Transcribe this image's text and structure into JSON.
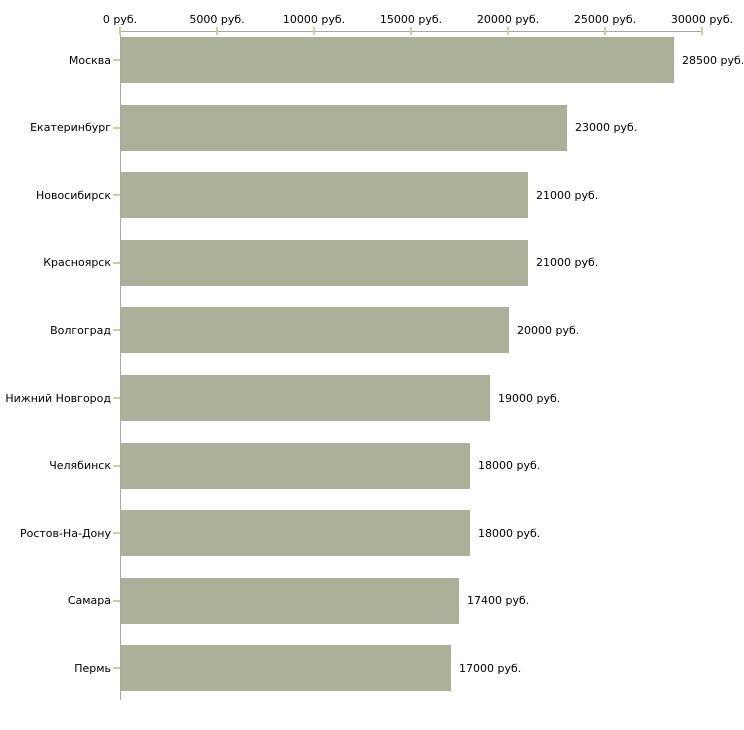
{
  "chart": {
    "background_color": "#ffffff",
    "bar_color": "#abb198",
    "axis_line_color": "#a9a9a0",
    "tick_mark_color": "#cfcca4",
    "text_color": "#000000"
  },
  "chart_data": {
    "type": "bar",
    "orientation": "horizontal",
    "title": "",
    "xlabel": "",
    "ylabel": "",
    "unit": "руб.",
    "xlim": [
      0,
      30000
    ],
    "grid": "off",
    "legend": "none",
    "x_tick_values": [
      0,
      5000,
      10000,
      15000,
      20000,
      25000,
      30000
    ],
    "x_tick_labels": [
      "0 руб.",
      "5000 руб.",
      "10000 руб.",
      "15000 руб.",
      "20000 руб.",
      "25000 руб.",
      "30000 руб."
    ],
    "categories": [
      "Москва",
      "Екатеринбург",
      "Новосибирск",
      "Красноярск",
      "Волгоград",
      "Нижний Новгород",
      "Челябинск",
      "Ростов-На-Дону",
      "Самара",
      "Пермь"
    ],
    "values": [
      28500,
      23000,
      21000,
      21000,
      20000,
      19000,
      18000,
      18000,
      17400,
      17000
    ],
    "value_labels": [
      "28500 руб.",
      "23000 руб.",
      "21000 руб.",
      "21000 руб.",
      "20000 руб.",
      "19000 руб.",
      "18000 руб.",
      "18000 руб.",
      "17400 руб.",
      "17000 руб."
    ]
  }
}
